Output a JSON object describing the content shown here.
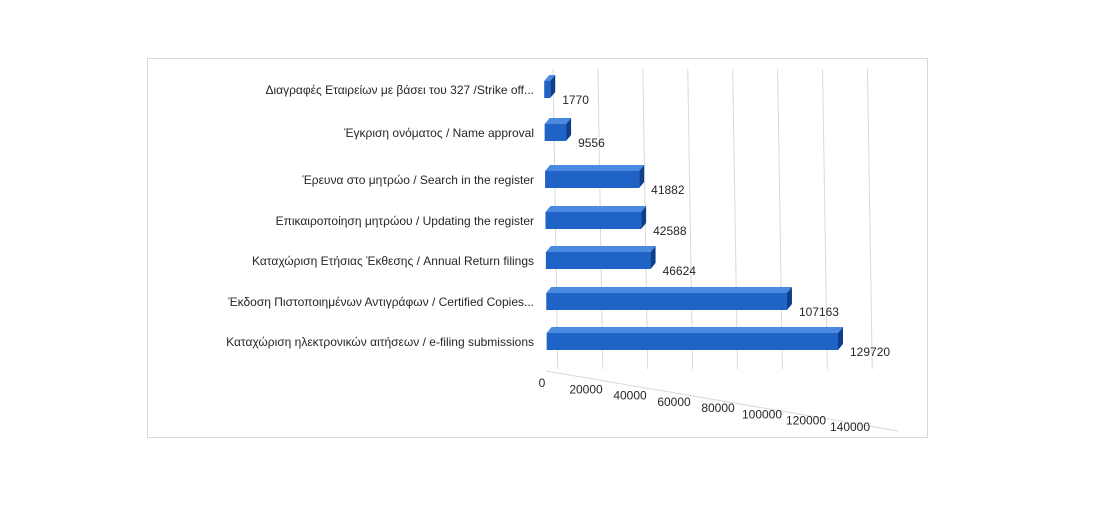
{
  "chart_data": {
    "type": "bar",
    "orientation": "horizontal",
    "style": "3d",
    "categories": [
      "Διαγραφές Εταιρείων  με  βάσει του 327 /Strike off...",
      "Έγκριση ονόματος  / Name approval",
      "Έρευνα στο μητρώο / Search in the register",
      "Επικαιροποίηση μητρώου / Updating the register",
      "Καταχώριση Ετήσιας Έκθεσης / Annual Return filings",
      "Έκδοση Πιστοποιημένων Αντιγράφων  / Certified Copies...",
      "Καταχώριση ηλεκτρονικών αιτήσεων / e-filing submissions"
    ],
    "values": [
      1770,
      9556,
      41882,
      42588,
      46624,
      107163,
      129720
    ],
    "data_labels": [
      "1770",
      "9556",
      "41882",
      "42588",
      "46624",
      "107163",
      "129720"
    ],
    "x_ticks": [
      "0",
      "20000",
      "40000",
      "60000",
      "80000",
      "100000",
      "120000",
      "140000"
    ],
    "xlim": [
      0,
      140000
    ],
    "grid": true,
    "legend": "none",
    "colors": {
      "bar_front": "#1f63c6",
      "bar_top": "#4a8ae0",
      "bar_side": "#0d3f8c",
      "grid": "#d9d9d9"
    }
  }
}
